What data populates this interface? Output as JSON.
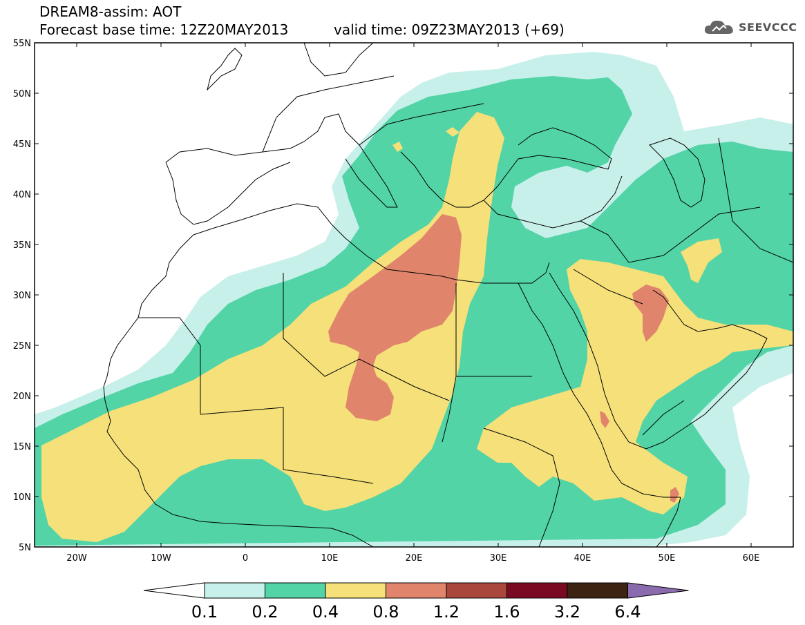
{
  "header": {
    "title": "DREAM8-assim: AOT",
    "base_time": "Forecast base time: 12Z20MAY2013",
    "valid_time": "valid time: 09Z23MAY2013 (+69)"
  },
  "logo": {
    "text": "SEEVCCC",
    "icon": "cloud-logo-icon"
  },
  "map": {
    "variable": "AOT",
    "lat_labels": [
      "55N",
      "50N",
      "45N",
      "40N",
      "35N",
      "30N",
      "25N",
      "20N",
      "15N",
      "10N",
      "5N"
    ],
    "lon_labels": [
      "20W",
      "10W",
      "0",
      "10E",
      "20E",
      "30E",
      "40E",
      "50E",
      "60E"
    ],
    "extent": {
      "lon_min": -25,
      "lon_max": 65,
      "lat_min": 5,
      "lat_max": 55
    }
  },
  "colorbar": {
    "labels": [
      "0.1",
      "0.2",
      "0.4",
      "0.8",
      "1.2",
      "1.6",
      "3.2",
      "6.4"
    ],
    "colors": [
      "#ffffff",
      "#c8f0ea",
      "#52d4a7",
      "#f5e07a",
      "#e0856b",
      "#a9473d",
      "#7a0a22",
      "#3d2412",
      "#8a6cae"
    ]
  }
}
